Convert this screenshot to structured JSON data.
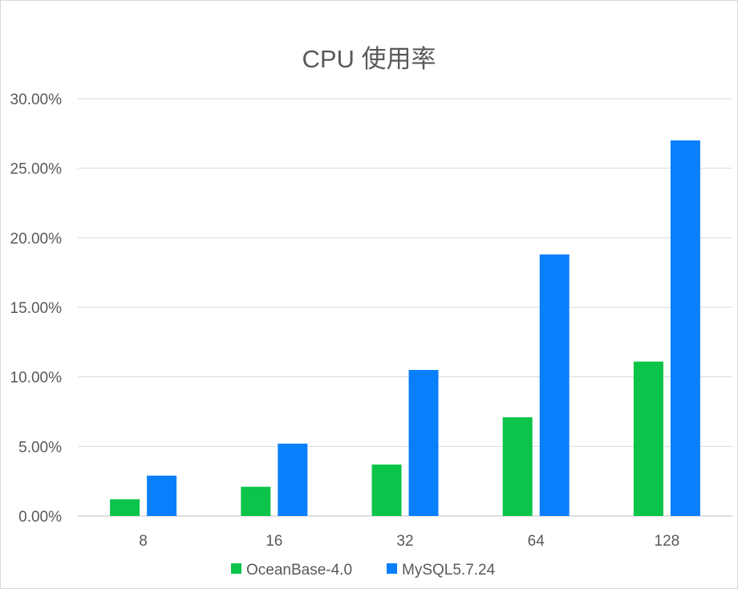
{
  "chart_data": {
    "type": "bar",
    "title": "CPU 使用率",
    "xlabel": "",
    "ylabel": "",
    "categories": [
      "8",
      "16",
      "32",
      "64",
      "128"
    ],
    "series": [
      {
        "name": "OceanBase-4.0",
        "color": "#0bc44a",
        "values": [
          0.012,
          0.021,
          0.037,
          0.071,
          0.111
        ]
      },
      {
        "name": "MySQL5.7.24",
        "color": "#0a7ffc",
        "values": [
          0.029,
          0.052,
          0.105,
          0.188,
          0.27
        ]
      }
    ],
    "ylim": [
      0,
      0.3
    ],
    "yticks": [
      0,
      0.05,
      0.1,
      0.15,
      0.2,
      0.25,
      0.3
    ],
    "ytick_labels": [
      "0.00%",
      "5.00%",
      "10.00%",
      "15.00%",
      "20.00%",
      "25.00%",
      "30.00%"
    ],
    "grid": true,
    "legend_position": "bottom"
  }
}
